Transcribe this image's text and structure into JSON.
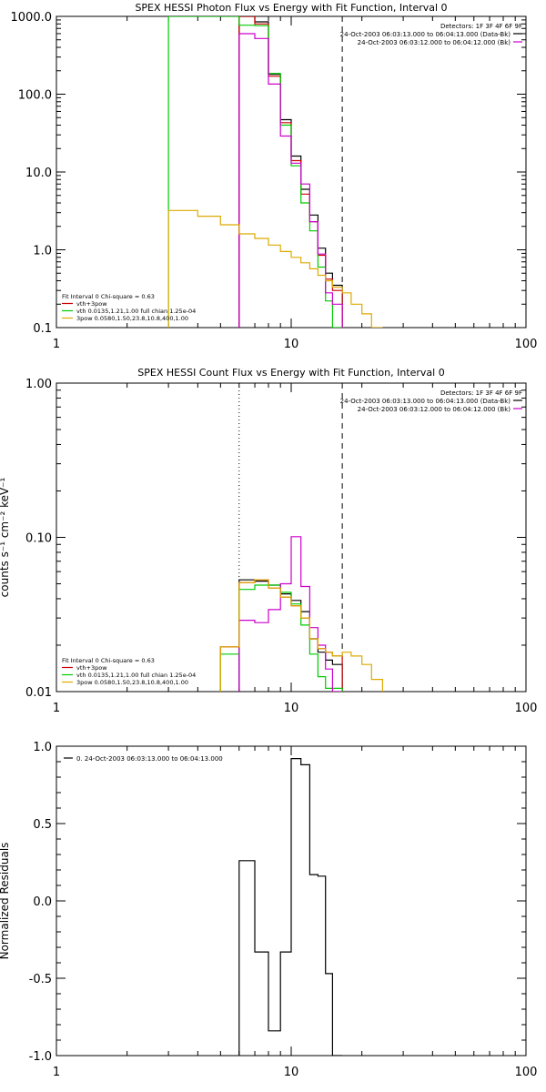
{
  "chart_data": [
    {
      "type": "line",
      "title": "SPEX HESSI Photon Flux vs Energy with Fit Function, Interval 0",
      "xlabel": "",
      "ylabel": "",
      "x_scale": "log",
      "y_scale": "log",
      "xlim": [
        1,
        100
      ],
      "ylim": [
        0.1,
        1000
      ],
      "xticks": [
        1,
        10,
        100
      ],
      "xtick_labels": [
        "1",
        "10",
        "100"
      ],
      "yticks": [
        0.1,
        1,
        10,
        100,
        1000
      ],
      "ytick_labels": [
        "0.1",
        "1.0",
        "10.0",
        "100.0",
        "1000.0"
      ],
      "vlines": [
        {
          "x": 6.0,
          "style": "dotted"
        },
        {
          "x": 16.5,
          "style": "dashed"
        }
      ],
      "header_lines": [
        "Detectors: 1F 3F 4F 6F 9F"
      ],
      "legend_top": [
        {
          "text": "24-Oct-2003 06:03:13.000 to 06:04:13.000 (Data-Bk)",
          "color": "#000000"
        },
        {
          "text": "24-Oct-2003 06:03:12.000 to 06:04:12.000 (Bk)",
          "color": "#cc00cc"
        }
      ],
      "legend_bottom": [
        {
          "text": "Fit Interval 0    Chi-square = 0.63",
          "color": "#000000"
        },
        {
          "text": "vth+3pow",
          "color": "#cc0000"
        },
        {
          "text": "vth 0.0135,1.21,1.00   full chian 1.25e-04",
          "color": "#00cc00"
        },
        {
          "text": "3pow 0.0580,1.50,23.8,10.8,400,1.00",
          "color": "#ddaa00"
        }
      ],
      "series": [
        {
          "color": "#000000",
          "edges": [
            6,
            7,
            8,
            9,
            10,
            11,
            12,
            13,
            14,
            15,
            16.5
          ],
          "values": [
            1000,
            850,
            180,
            47,
            16,
            6,
            2.8,
            1.05,
            0.5,
            0.35
          ]
        },
        {
          "color": "#cc0000",
          "edges": [
            6,
            7,
            8,
            9,
            10,
            11,
            12,
            13,
            14,
            15,
            16.5
          ],
          "values": [
            1000,
            800,
            170,
            43,
            14,
            5.2,
            2.3,
            0.85,
            0.42,
            0.3
          ]
        },
        {
          "color": "#00cc00",
          "edges": [
            3,
            5,
            6,
            7,
            8,
            9,
            10,
            11,
            12,
            13,
            14,
            15,
            16.5
          ],
          "values": [
            1000,
            1000,
            770,
            760,
            185,
            40,
            12,
            4,
            1.75,
            0.6,
            0.22,
            0.1
          ]
        },
        {
          "color": "#cc00cc",
          "edges": [
            6,
            7,
            8,
            9,
            10,
            11,
            12,
            13,
            14,
            15,
            16.5
          ],
          "values": [
            600,
            520,
            135,
            29,
            13,
            7,
            2.3,
            0.88,
            0.28,
            0.2
          ]
        },
        {
          "color": "#ddaa00",
          "edges": [
            3,
            4,
            5,
            6,
            7,
            8,
            9,
            10,
            11,
            12,
            13,
            14,
            15,
            16.5,
            18,
            20,
            22,
            24.5
          ],
          "values": [
            3.2,
            2.7,
            2.1,
            1.6,
            1.4,
            1.15,
            0.95,
            0.8,
            0.68,
            0.57,
            0.47,
            0.4,
            0.33,
            0.28,
            0.2,
            0.15,
            0.1
          ]
        }
      ]
    },
    {
      "type": "line",
      "title": "SPEX HESSI Count Flux vs Energy with Fit Function, Interval 0",
      "xlabel": "",
      "ylabel": "counts s⁻¹ cm⁻² keV⁻¹",
      "x_scale": "log",
      "y_scale": "log",
      "xlim": [
        1,
        100
      ],
      "ylim": [
        0.01,
        1.0
      ],
      "xticks": [
        1,
        10,
        100
      ],
      "xtick_labels": [
        "1",
        "10",
        "100"
      ],
      "yticks": [
        0.01,
        0.1,
        1.0
      ],
      "ytick_labels": [
        "0.01",
        "0.10",
        "1.00"
      ],
      "vlines": [
        {
          "x": 6.0,
          "style": "dotted"
        },
        {
          "x": 16.5,
          "style": "dashed"
        }
      ],
      "header_lines": [
        "Detectors: 1F 3F 4F 6F 9F"
      ],
      "legend_top": [
        {
          "text": "24-Oct-2003 06:03:13.000 to 06:04:13.000 (Data-Bk)",
          "color": "#000000"
        },
        {
          "text": "24-Oct-2003 06:03:12.000 to 06:04:12.000 (Bk)",
          "color": "#cc00cc"
        }
      ],
      "legend_bottom": [
        {
          "text": "Fit Interval 0    Chi-square = 0.63",
          "color": "#000000"
        },
        {
          "text": "vth+3pow",
          "color": "#cc0000"
        },
        {
          "text": "vth 0.0135,1.21,1.00   full chian 1.25e-04",
          "color": "#00cc00"
        },
        {
          "text": "3pow 0.0580,1.50,23.8,10.8,400,1.00",
          "color": "#ddaa00"
        }
      ],
      "series": [
        {
          "color": "#000000",
          "edges": [
            6,
            7,
            8,
            9,
            10,
            11,
            12,
            13,
            14,
            15,
            16.5
          ],
          "values": [
            0.053,
            0.052,
            0.049,
            0.043,
            0.039,
            0.033,
            0.022,
            0.018,
            0.016,
            0.015
          ]
        },
        {
          "color": "#cc0000",
          "edges": [
            5,
            6,
            7,
            8,
            9,
            10,
            11,
            12,
            13,
            14,
            15,
            16.5
          ],
          "values": [
            0.0195,
            0.051,
            0.053,
            0.047,
            0.041,
            0.036,
            0.03,
            0.022,
            0.019,
            0.018,
            0.017
          ]
        },
        {
          "color": "#00cc00",
          "edges": [
            5,
            6,
            7,
            8,
            9,
            10,
            11,
            12,
            13,
            14,
            15,
            16.5
          ],
          "values": [
            0.0175,
            0.046,
            0.049,
            0.049,
            0.044,
            0.037,
            0.027,
            0.0175,
            0.0125,
            0.0105,
            0.0105
          ]
        },
        {
          "color": "#cc00cc",
          "edges": [
            6,
            7,
            8,
            9,
            10,
            11,
            12,
            13,
            14,
            15,
            16.5
          ],
          "values": [
            0.029,
            0.028,
            0.034,
            0.05,
            0.101,
            0.048,
            0.026,
            0.02,
            0.014,
            0.01
          ]
        },
        {
          "color": "#ddaa00",
          "edges": [
            5,
            6,
            7,
            8,
            9,
            10,
            11,
            12,
            13,
            14,
            15,
            16.5,
            18,
            20,
            22,
            24.5
          ],
          "values": [
            0.0195,
            0.051,
            0.053,
            0.047,
            0.041,
            0.036,
            0.03,
            0.022,
            0.019,
            0.018,
            0.017,
            0.018,
            0.017,
            0.015,
            0.012
          ]
        }
      ]
    },
    {
      "type": "line",
      "title": "",
      "xlabel": "",
      "ylabel": "Normalized Residuals",
      "x_scale": "log",
      "y_scale": "linear",
      "xlim": [
        1,
        100
      ],
      "ylim": [
        -1.0,
        1.0
      ],
      "xticks": [
        1,
        10,
        100
      ],
      "xtick_labels": [
        "1",
        "10",
        "100"
      ],
      "yticks": [
        -1.0,
        -0.5,
        0.0,
        0.5,
        1.0
      ],
      "ytick_labels": [
        "-1.0",
        "-0.5",
        "0.0",
        "0.5",
        "1.0"
      ],
      "vlines": [],
      "header_lines": [],
      "legend_top": [
        {
          "text": "0. 24-Oct-2003 06:03:13.000 to 06:04:13.000",
          "color": "#000000"
        }
      ],
      "legend_bottom": [],
      "series": [
        {
          "color": "#000000",
          "edges": [
            6,
            7,
            8,
            9,
            10,
            11,
            12,
            13,
            14,
            15,
            16.5
          ],
          "values": [
            0.26,
            -0.33,
            -0.84,
            -0.33,
            0.92,
            0.88,
            0.17,
            0.16,
            -0.47,
            -1.0
          ]
        }
      ]
    }
  ]
}
